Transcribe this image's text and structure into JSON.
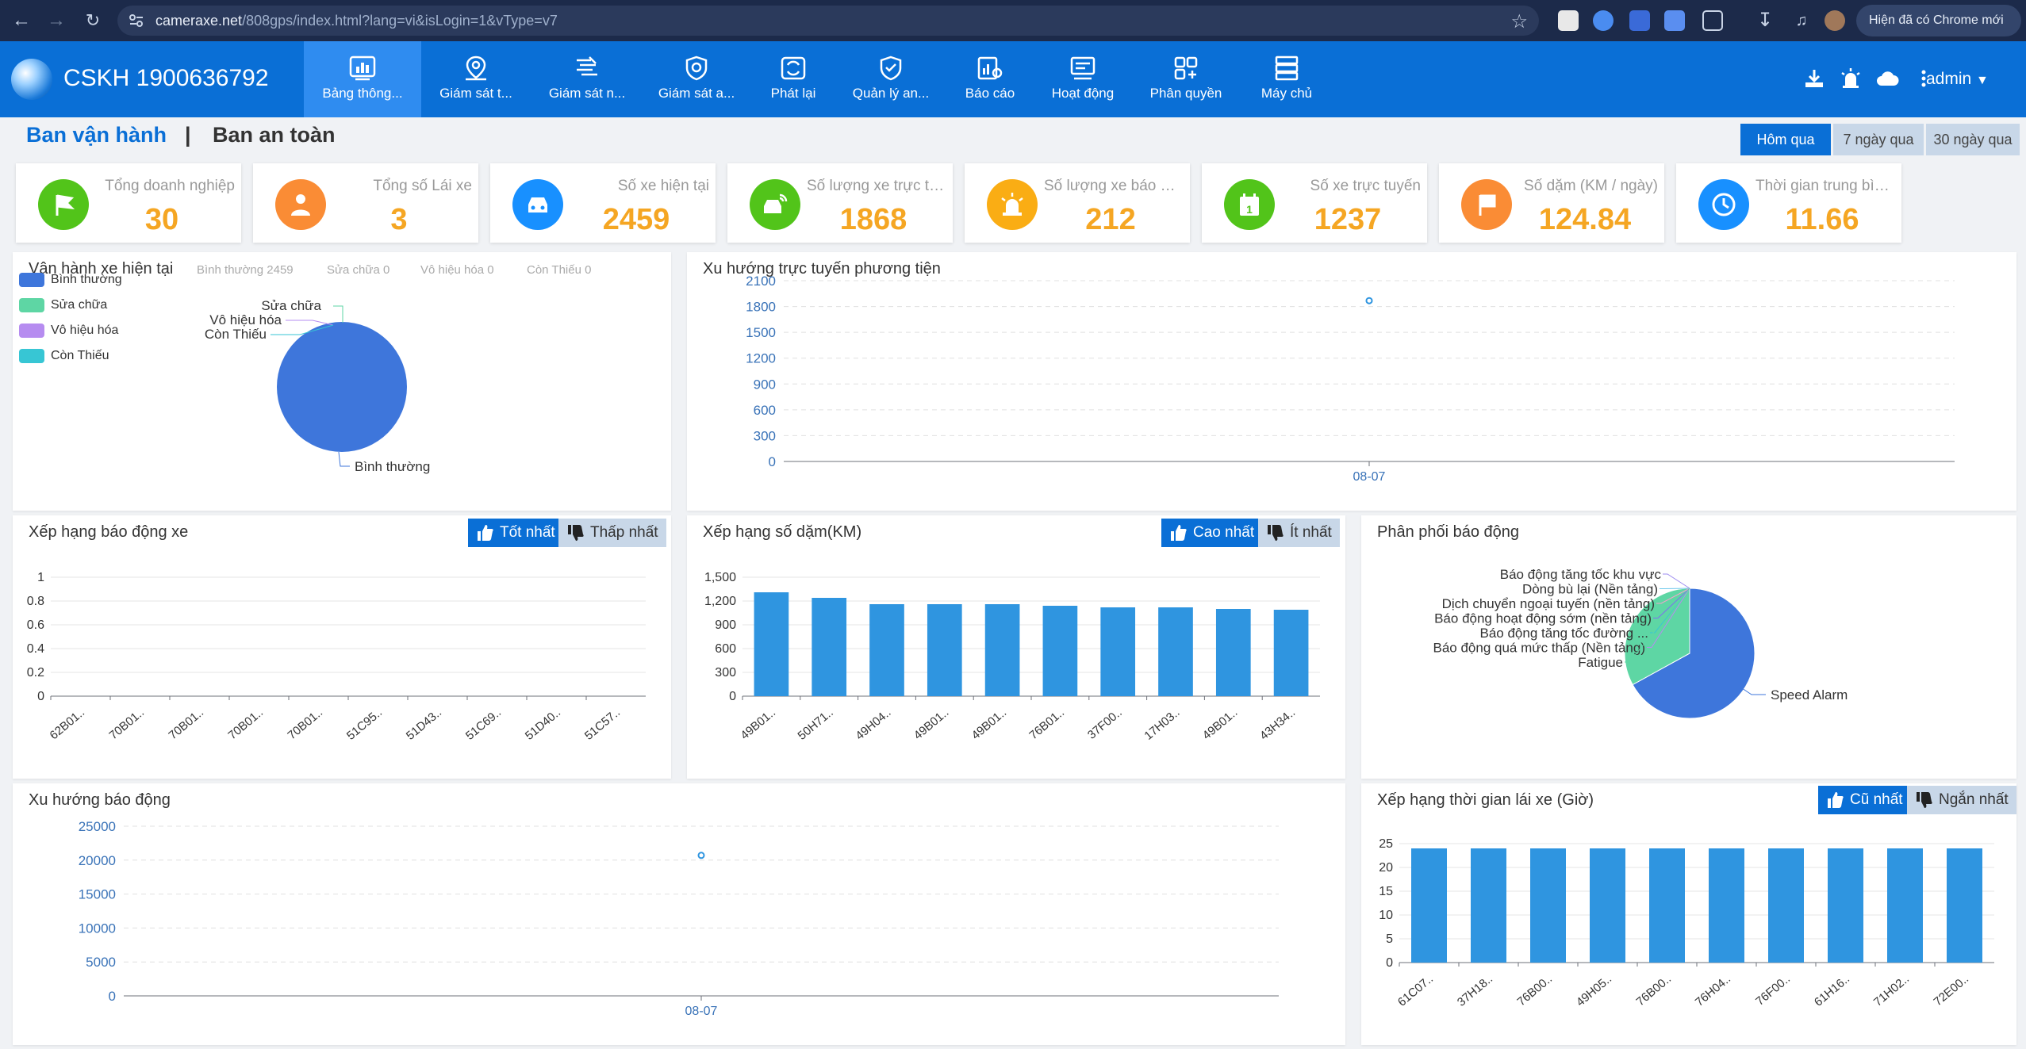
{
  "browser": {
    "url_host": "cameraxe.net",
    "url_path": "/808gps/index.html?lang=vi&isLogin=1&vType=v7",
    "update_label": "Hiện đã có Chrome mới"
  },
  "header": {
    "hotline": "CSKH 1900636792",
    "tabs": [
      {
        "label": "Bảng thông..."
      },
      {
        "label": "Giám sát t..."
      },
      {
        "label": "Giám sát n..."
      },
      {
        "label": "Giám sát a..."
      },
      {
        "label": "Phát lại"
      },
      {
        "label": "Quản lý an..."
      },
      {
        "label": "Báo cáo"
      },
      {
        "label": "Hoạt động"
      },
      {
        "label": "Phân quyền"
      },
      {
        "label": "Máy chủ"
      }
    ],
    "user": "admin"
  },
  "title": {
    "operation": "Ban vận hành",
    "separator": "|",
    "safety": "Ban an toàn"
  },
  "range_buttons": [
    "Hôm qua",
    "7 ngày qua",
    "30 ngày qua"
  ],
  "stats": [
    {
      "label": "Tổng doanh nghiệp",
      "value": "30",
      "color": "#52c41a",
      "icon": "flag-icon"
    },
    {
      "label": "Tổng số Lái xe",
      "value": "3",
      "color": "#fa8c35",
      "icon": "driver-icon"
    },
    {
      "label": "Số xe hiện tại",
      "value": "2459",
      "color": "#1890ff",
      "icon": "car-icon"
    },
    {
      "label": "Số lượng xe trực tuyến hôm qua",
      "value": "1868",
      "color": "#52c41a",
      "icon": "online-car-icon"
    },
    {
      "label": "Số lượng xe báo động hiện tại",
      "value": "212",
      "color": "#faad14",
      "icon": "alarm-light-icon"
    },
    {
      "label": "Số xe trực tuyến",
      "value": "1237",
      "color": "#52c41a",
      "icon": "calendar-icon"
    },
    {
      "label": "Số dặm (KM / ngày)",
      "value": "124.84",
      "color": "#fa8c35",
      "icon": "mileage-flag-icon"
    },
    {
      "label": "Thời gian trung bình (Giờ)",
      "value": "11.66",
      "color": "#1890ff",
      "icon": "clock-icon"
    }
  ],
  "panels": {
    "vehicle_status": {
      "title": "Vận hành xe hiện tại",
      "summary": [
        "Bình thường 2459",
        "Sửa chữa 0",
        "Vô hiệu hóa 0",
        "Còn Thiếu 0"
      ],
      "legend": [
        "Bình thường",
        "Sửa chữa",
        "Vô hiệu hóa",
        "Còn Thiếu"
      ]
    },
    "online_trend": {
      "title": "Xu hướng trực tuyến phương tiện"
    },
    "alarm_rank": {
      "title": "Xếp hạng báo động xe",
      "best": "Tốt nhất",
      "worst": "Thấp nhất"
    },
    "mileage_rank": {
      "title": "Xếp hạng số dặm(KM)",
      "best": "Cao nhất",
      "worst": "Ít nhất"
    },
    "alarm_dist": {
      "title": "Phân phối báo động"
    },
    "alarm_trend": {
      "title": "Xu hướng báo động"
    },
    "drive_time_rank": {
      "title": "Xếp hạng thời gian lái xe (Giờ)",
      "best": "Cũ nhất",
      "worst": "Ngắn nhất"
    }
  },
  "chart_data": [
    {
      "id": "vehicle_status",
      "type": "pie",
      "labels": [
        "Bình thường",
        "Sửa chữa",
        "Vô hiệu hóa",
        "Còn Thiếu"
      ],
      "values": [
        2459,
        0,
        0,
        0
      ],
      "colors": [
        "#3e76db",
        "#5ed6a4",
        "#b68cf0",
        "#37c6d4"
      ],
      "legend": "left"
    },
    {
      "id": "online_trend",
      "type": "line",
      "x": [
        "08-07"
      ],
      "y": [
        1868
      ],
      "ylim": [
        0,
        2100
      ],
      "yticks": [
        0,
        300,
        600,
        900,
        1200,
        1500,
        1800,
        2100
      ],
      "grid": true
    },
    {
      "id": "alarm_rank",
      "type": "bar",
      "categories": [
        "62B01..",
        "70B01..",
        "70B01..",
        "70B01..",
        "70B01..",
        "51C95..",
        "51D43..",
        "51C69..",
        "51D40..",
        "51C57.."
      ],
      "values": [
        0,
        0,
        0,
        0,
        0,
        0,
        0,
        0,
        0,
        0
      ],
      "ylim": [
        0,
        1
      ],
      "yticks": [
        "0",
        "0.2",
        "0.4",
        "0.6",
        "0.8",
        "1"
      ],
      "grid": true
    },
    {
      "id": "mileage_rank",
      "type": "bar",
      "categories": [
        "49B01..",
        "50H71..",
        "49H04..",
        "49B01..",
        "49B01..",
        "76B01..",
        "37F00..",
        "17H03..",
        "49B01..",
        "43H34.."
      ],
      "values": [
        1310,
        1240,
        1160,
        1160,
        1160,
        1140,
        1120,
        1120,
        1100,
        1090
      ],
      "ylim": [
        0,
        1500
      ],
      "yticks": [
        "0",
        "300",
        "600",
        "900",
        "1,200",
        "1,500"
      ],
      "color": "#2f95e0",
      "grid": true
    },
    {
      "id": "alarm_dist",
      "type": "pie",
      "labels": [
        "Speed Alarm",
        "Fatigue",
        "Báo động quá mức thấp (Nền tảng)",
        "Báo động tăng tốc đường ...",
        "Báo động hoạt động sớm (nền tảng)",
        "Dịch chuyển ngoại tuyến (nền tảng)",
        "Dòng bù lại (Nền tảng)",
        "Báo động tăng tốc khu vực"
      ],
      "values": [
        67,
        33,
        0,
        0,
        0,
        0,
        0,
        0
      ],
      "colors": [
        "#3e76db",
        "#5ed6a4",
        "#b68cf0",
        "#37c6d4",
        "#7d6ff0",
        "#f3a4c9",
        "#6dc8ec",
        "#9d8cf0"
      ]
    },
    {
      "id": "alarm_trend",
      "type": "line",
      "x": [
        "08-07"
      ],
      "y": [
        20700
      ],
      "ylim": [
        0,
        25000
      ],
      "yticks": [
        0,
        5000,
        10000,
        15000,
        20000,
        25000
      ],
      "grid": true
    },
    {
      "id": "drive_time_rank",
      "type": "bar",
      "categories": [
        "61C07..",
        "37H18..",
        "76B00..",
        "49H05..",
        "76B00..",
        "76H04..",
        "76F00..",
        "61H16..",
        "71H02..",
        "72E00.."
      ],
      "values": [
        24,
        24,
        24,
        24,
        24,
        24,
        24,
        24,
        24,
        24
      ],
      "ylim": [
        0,
        25
      ],
      "yticks": [
        "0",
        "5",
        "10",
        "15",
        "20",
        "25"
      ],
      "color": "#2f95e0",
      "grid": true
    }
  ]
}
